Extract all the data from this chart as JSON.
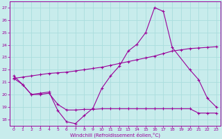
{
  "xlabel": "Windchill (Refroidissement éolien,°C)",
  "xlim": [
    -0.5,
    23.5
  ],
  "ylim": [
    17.5,
    27.5
  ],
  "xticks": [
    0,
    1,
    2,
    3,
    4,
    5,
    6,
    7,
    8,
    9,
    10,
    11,
    12,
    13,
    14,
    15,
    16,
    17,
    18,
    19,
    20,
    21,
    22,
    23
  ],
  "yticks": [
    18,
    19,
    20,
    21,
    22,
    23,
    24,
    25,
    26,
    27
  ],
  "bg_color": "#c8ecec",
  "grid_color": "#aadddd",
  "line_color": "#990099",
  "line1_x": [
    0,
    1,
    2,
    3,
    4,
    5,
    6,
    7,
    8,
    9,
    10,
    11,
    12,
    13,
    14,
    15,
    16,
    17,
    18,
    20,
    21,
    22,
    23
  ],
  "line1_y": [
    21.5,
    20.8,
    20.0,
    20.1,
    20.2,
    18.7,
    17.8,
    17.65,
    18.3,
    18.9,
    20.5,
    21.5,
    22.3,
    23.5,
    24.05,
    25.0,
    27.0,
    26.7,
    23.8,
    22.0,
    21.2,
    19.7,
    19.0
  ],
  "line2_x": [
    0,
    1,
    2,
    3,
    4,
    5,
    6,
    7,
    8,
    9,
    10,
    11,
    12,
    13,
    14,
    15,
    16,
    17,
    18,
    19,
    20,
    21,
    22,
    23
  ],
  "line2_y": [
    21.3,
    21.4,
    21.5,
    21.6,
    21.7,
    21.75,
    21.8,
    21.9,
    22.0,
    22.1,
    22.2,
    22.35,
    22.5,
    22.65,
    22.8,
    22.95,
    23.1,
    23.3,
    23.5,
    23.6,
    23.7,
    23.75,
    23.8,
    23.85
  ],
  "line3_x": [
    0,
    1,
    2,
    3,
    4,
    5,
    6,
    7,
    8,
    9,
    10,
    11,
    12,
    13,
    14,
    15,
    16,
    17,
    18,
    19,
    20,
    21,
    22,
    23
  ],
  "line3_y": [
    21.3,
    20.8,
    20.0,
    20.0,
    20.1,
    19.2,
    18.75,
    18.75,
    18.8,
    18.8,
    18.85,
    18.85,
    18.85,
    18.85,
    18.85,
    18.85,
    18.85,
    18.85,
    18.85,
    18.85,
    18.85,
    18.5,
    18.5,
    18.5
  ]
}
